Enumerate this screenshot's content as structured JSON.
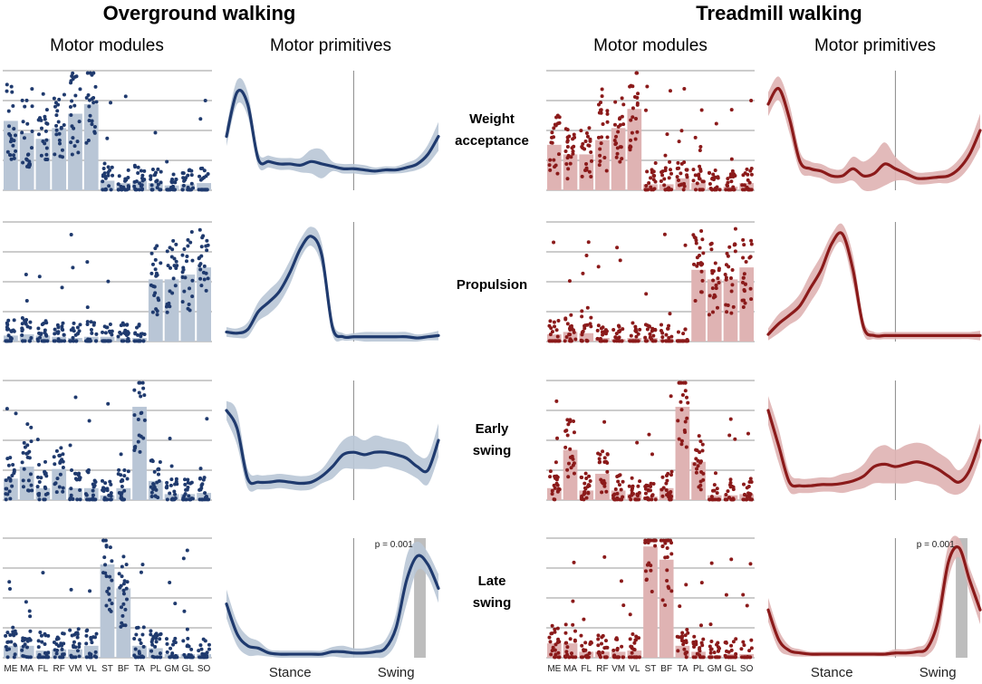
{
  "titles": {
    "overground": "Overground walking",
    "treadmill": "Treadmill walking"
  },
  "subtitles": {
    "modules": "Motor modules",
    "primitives": "Motor primitives"
  },
  "rows": [
    {
      "label1": "Weight",
      "label2": "acceptance"
    },
    {
      "label1": "Propulsion",
      "label2": ""
    },
    {
      "label1": "Early",
      "label2": "swing"
    },
    {
      "label1": "Late",
      "label2": "swing"
    }
  ],
  "phase_labels": {
    "stance": "Stance",
    "swing": "Swing"
  },
  "annotations": {
    "late_swing_p": "p = 0.001"
  },
  "colors": {
    "overground": "#1f3a6e",
    "treadmill": "#8b1a1a",
    "overground_fill": "#b9c6d6",
    "treadmill_fill": "#dfb3b3",
    "grid": "#9a9a9a"
  },
  "chart_data": [
    {
      "type": "bar",
      "name": "Overground motor modules",
      "categories": [
        "ME",
        "MA",
        "FL",
        "RF",
        "VM",
        "VL",
        "ST",
        "BF",
        "TA",
        "PL",
        "GM",
        "GL",
        "SO"
      ],
      "ylim": [
        0,
        1
      ],
      "series": [
        {
          "name": "Weight acceptance",
          "values": [
            0.58,
            0.48,
            0.43,
            0.52,
            0.64,
            0.72,
            0.08,
            0.06,
            0.08,
            0.06,
            0.04,
            0.05,
            0.06
          ]
        },
        {
          "name": "Propulsion",
          "values": [
            0.05,
            0.06,
            0.05,
            0.04,
            0.03,
            0.04,
            0.04,
            0.03,
            0.03,
            0.52,
            0.52,
            0.56,
            0.62
          ]
        },
        {
          "name": "Early swing",
          "values": [
            0.18,
            0.28,
            0.1,
            0.26,
            0.1,
            0.1,
            0.04,
            0.1,
            0.78,
            0.16,
            0.05,
            0.05,
            0.06
          ]
        },
        {
          "name": "Late swing",
          "values": [
            0.1,
            0.1,
            0.06,
            0.07,
            0.07,
            0.1,
            0.78,
            0.58,
            0.1,
            0.08,
            0.03,
            0.03,
            0.03
          ]
        }
      ]
    },
    {
      "type": "line",
      "name": "Overground motor primitives",
      "x": [
        0,
        5,
        10,
        15,
        20,
        25,
        30,
        35,
        40,
        45,
        50,
        55,
        60,
        65,
        70,
        75,
        80,
        85,
        90,
        95,
        100
      ],
      "xticklabels": [
        "Stance",
        "Swing"
      ],
      "ylim": [
        0,
        1
      ],
      "series": [
        {
          "name": "Weight acceptance",
          "values": [
            0.45,
            0.82,
            0.72,
            0.26,
            0.24,
            0.22,
            0.22,
            0.21,
            0.24,
            0.22,
            0.2,
            0.18,
            0.18,
            0.17,
            0.16,
            0.17,
            0.17,
            0.19,
            0.22,
            0.3,
            0.45
          ],
          "band": [
            0.08,
            0.1,
            0.1,
            0.06,
            0.05,
            0.05,
            0.05,
            0.06,
            0.1,
            0.12,
            0.04,
            0.04,
            0.04,
            0.04,
            0.03,
            0.03,
            0.03,
            0.04,
            0.05,
            0.08,
            0.12
          ]
        },
        {
          "name": "Propulsion",
          "values": [
            0.08,
            0.07,
            0.1,
            0.25,
            0.33,
            0.42,
            0.58,
            0.78,
            0.88,
            0.72,
            0.12,
            0.04,
            0.04,
            0.04,
            0.04,
            0.04,
            0.04,
            0.04,
            0.03,
            0.04,
            0.05
          ],
          "band": [
            0.04,
            0.04,
            0.06,
            0.08,
            0.1,
            0.1,
            0.1,
            0.08,
            0.08,
            0.1,
            0.06,
            0.03,
            0.03,
            0.04,
            0.04,
            0.04,
            0.04,
            0.04,
            0.03,
            0.03,
            0.04
          ]
        },
        {
          "name": "Early swing",
          "values": [
            0.75,
            0.6,
            0.18,
            0.15,
            0.15,
            0.16,
            0.15,
            0.14,
            0.15,
            0.2,
            0.28,
            0.38,
            0.4,
            0.38,
            0.4,
            0.4,
            0.38,
            0.35,
            0.28,
            0.25,
            0.5
          ],
          "band": [
            0.08,
            0.14,
            0.08,
            0.06,
            0.06,
            0.06,
            0.06,
            0.06,
            0.06,
            0.06,
            0.1,
            0.12,
            0.14,
            0.12,
            0.14,
            0.12,
            0.12,
            0.12,
            0.1,
            0.12,
            0.14
          ]
        },
        {
          "name": "Late swing",
          "values": [
            0.45,
            0.2,
            0.1,
            0.08,
            0.04,
            0.03,
            0.03,
            0.03,
            0.03,
            0.03,
            0.05,
            0.05,
            0.04,
            0.04,
            0.05,
            0.08,
            0.25,
            0.65,
            0.85,
            0.78,
            0.58
          ],
          "band": [
            0.12,
            0.1,
            0.08,
            0.06,
            0.03,
            0.03,
            0.03,
            0.03,
            0.03,
            0.03,
            0.04,
            0.05,
            0.04,
            0.04,
            0.05,
            0.07,
            0.12,
            0.2,
            0.12,
            0.1,
            0.12
          ]
        }
      ]
    },
    {
      "type": "bar",
      "name": "Treadmill motor modules",
      "categories": [
        "ME",
        "MA",
        "FL",
        "RF",
        "VM",
        "VL",
        "ST",
        "BF",
        "TA",
        "PL",
        "GM",
        "GL",
        "SO"
      ],
      "ylim": [
        0,
        1
      ],
      "series": [
        {
          "name": "Weight acceptance",
          "values": [
            0.38,
            0.3,
            0.3,
            0.42,
            0.52,
            0.68,
            0.05,
            0.05,
            0.1,
            0.06,
            0.02,
            0.03,
            0.06
          ]
        },
        {
          "name": "Propulsion",
          "values": [
            0.06,
            0.08,
            0.07,
            0.03,
            0.02,
            0.03,
            0.03,
            0.02,
            0.02,
            0.6,
            0.52,
            0.52,
            0.62
          ]
        },
        {
          "name": "Early swing",
          "values": [
            0.1,
            0.42,
            0.08,
            0.22,
            0.08,
            0.05,
            0.03,
            0.1,
            0.78,
            0.32,
            0.04,
            0.04,
            0.05
          ]
        },
        {
          "name": "Late swing",
          "values": [
            0.12,
            0.12,
            0.05,
            0.05,
            0.05,
            0.06,
            0.93,
            0.82,
            0.1,
            0.05,
            0.02,
            0.03,
            0.03
          ]
        }
      ]
    },
    {
      "type": "line",
      "name": "Treadmill motor primitives",
      "x": [
        0,
        5,
        10,
        15,
        20,
        25,
        30,
        35,
        40,
        45,
        50,
        55,
        60,
        65,
        70,
        75,
        80,
        85,
        90,
        95,
        100
      ],
      "xticklabels": [
        "Stance",
        "Swing"
      ],
      "ylim": [
        0,
        1
      ],
      "series": [
        {
          "name": "Weight acceptance",
          "values": [
            0.72,
            0.85,
            0.6,
            0.24,
            0.18,
            0.16,
            0.12,
            0.12,
            0.18,
            0.12,
            0.14,
            0.22,
            0.18,
            0.14,
            0.1,
            0.1,
            0.11,
            0.12,
            0.18,
            0.3,
            0.5
          ],
          "band": [
            0.1,
            0.1,
            0.12,
            0.08,
            0.06,
            0.06,
            0.06,
            0.06,
            0.1,
            0.12,
            0.16,
            0.18,
            0.1,
            0.06,
            0.05,
            0.05,
            0.05,
            0.06,
            0.08,
            0.1,
            0.14
          ]
        },
        {
          "name": "Propulsion",
          "values": [
            0.06,
            0.15,
            0.22,
            0.3,
            0.45,
            0.6,
            0.82,
            0.9,
            0.6,
            0.12,
            0.05,
            0.05,
            0.05,
            0.05,
            0.05,
            0.05,
            0.05,
            0.05,
            0.05,
            0.05,
            0.05
          ],
          "band": [
            0.05,
            0.08,
            0.08,
            0.1,
            0.12,
            0.12,
            0.08,
            0.08,
            0.12,
            0.06,
            0.03,
            0.03,
            0.03,
            0.03,
            0.03,
            0.03,
            0.03,
            0.03,
            0.03,
            0.03,
            0.04
          ]
        },
        {
          "name": "Early swing",
          "values": [
            0.75,
            0.45,
            0.15,
            0.12,
            0.12,
            0.13,
            0.13,
            0.14,
            0.16,
            0.2,
            0.28,
            0.3,
            0.28,
            0.3,
            0.32,
            0.3,
            0.26,
            0.2,
            0.15,
            0.25,
            0.5
          ],
          "band": [
            0.12,
            0.14,
            0.08,
            0.06,
            0.06,
            0.06,
            0.06,
            0.08,
            0.08,
            0.1,
            0.14,
            0.16,
            0.14,
            0.16,
            0.16,
            0.16,
            0.14,
            0.14,
            0.1,
            0.12,
            0.14
          ]
        },
        {
          "name": "Late swing",
          "values": [
            0.4,
            0.15,
            0.06,
            0.04,
            0.03,
            0.03,
            0.03,
            0.03,
            0.03,
            0.03,
            0.03,
            0.03,
            0.04,
            0.04,
            0.05,
            0.08,
            0.3,
            0.8,
            0.92,
            0.65,
            0.4
          ],
          "band": [
            0.1,
            0.08,
            0.04,
            0.03,
            0.02,
            0.02,
            0.02,
            0.02,
            0.02,
            0.02,
            0.02,
            0.02,
            0.03,
            0.03,
            0.04,
            0.06,
            0.14,
            0.14,
            0.08,
            0.1,
            0.12
          ]
        }
      ]
    }
  ]
}
